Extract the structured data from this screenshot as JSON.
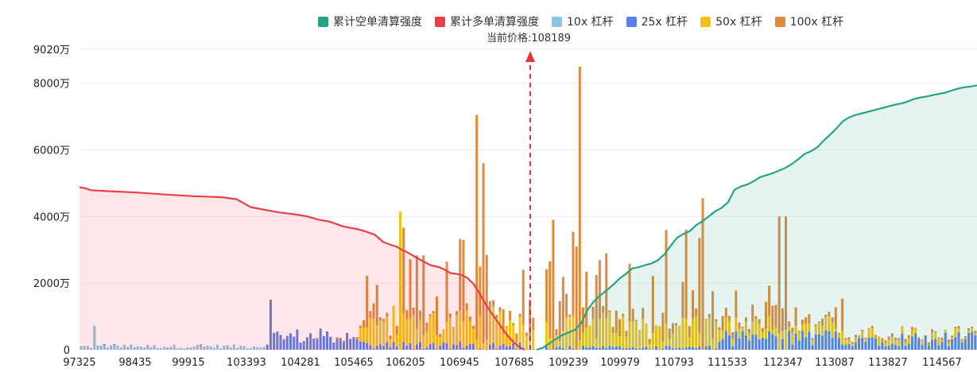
{
  "chart_data": {
    "type": "bar",
    "legend": [
      {
        "name": "累计空单清算强度",
        "color": "#26a483"
      },
      {
        "name": "累计多单清算强度",
        "color": "#ee3d48"
      },
      {
        "name": "10x 杠杆",
        "color": "#8ec3e6"
      },
      {
        "name": "25x 杠杆",
        "color": "#5b7ee8"
      },
      {
        "name": "50x 杠杆",
        "color": "#f6c211"
      },
      {
        "name": "100x 杠杆",
        "color": "#e08a3c"
      }
    ],
    "current_price_label": "当前价格:108189",
    "current_price": 108189,
    "y_ticks": [
      "0",
      "2000万",
      "4000万",
      "6000万",
      "8000万",
      "9020万"
    ],
    "y_tick_values": [
      0,
      2000,
      4000,
      6000,
      8000,
      9020
    ],
    "ylim": [
      0,
      9020
    ],
    "y_unit": "万",
    "x_ticks": [
      "97325",
      "98435",
      "99915",
      "103393",
      "104281",
      "105465",
      "106205",
      "106945",
      "107685",
      "109239",
      "109979",
      "110793",
      "111533",
      "112347",
      "113087",
      "113827",
      "114567"
    ],
    "bar_count": 270,
    "gap_index": 138,
    "leverage_bars_sample": {
      "note": "bar stacks: 10x, 25x, 50x, 100x (万)",
      "x_peak_bars": [
        {
          "x": "106945",
          "100x": 6750
        },
        {
          "x": "108189+",
          "100x": 8200
        },
        {
          "x": "106205",
          "50x": 4150
        },
        {
          "x": "110793",
          "100x": 4550
        }
      ]
    },
    "series_long_cumulative": [
      [
        0,
        4880
      ],
      [
        4,
        4850
      ],
      [
        8,
        4790
      ],
      [
        20,
        4760
      ],
      [
        40,
        4720
      ],
      [
        60,
        4660
      ],
      [
        80,
        4610
      ],
      [
        100,
        4580
      ],
      [
        110,
        4520
      ],
      [
        115,
        4400
      ],
      [
        120,
        4280
      ],
      [
        130,
        4200
      ],
      [
        140,
        4120
      ],
      [
        150,
        4070
      ],
      [
        160,
        4000
      ],
      [
        168,
        3900
      ],
      [
        175,
        3850
      ],
      [
        185,
        3700
      ],
      [
        195,
        3620
      ],
      [
        200,
        3560
      ],
      [
        207,
        3450
      ],
      [
        210,
        3340
      ],
      [
        213,
        3230
      ],
      [
        218,
        3150
      ],
      [
        222,
        3100
      ],
      [
        226,
        3000
      ],
      [
        230,
        2920
      ],
      [
        234,
        2820
      ],
      [
        238,
        2720
      ],
      [
        242,
        2630
      ],
      [
        246,
        2540
      ],
      [
        252,
        2480
      ],
      [
        256,
        2400
      ],
      [
        260,
        2300
      ],
      [
        264,
        2280
      ],
      [
        268,
        2240
      ],
      [
        272,
        2150
      ],
      [
        276,
        1980
      ],
      [
        280,
        1720
      ],
      [
        284,
        1420
      ],
      [
        288,
        1150
      ],
      [
        292,
        900
      ],
      [
        296,
        660
      ],
      [
        300,
        420
      ],
      [
        304,
        240
      ],
      [
        308,
        90
      ],
      [
        312,
        0
      ]
    ],
    "series_short_cumulative": [
      [
        0,
        0
      ],
      [
        4,
        60
      ],
      [
        8,
        190
      ],
      [
        12,
        320
      ],
      [
        16,
        440
      ],
      [
        20,
        520
      ],
      [
        24,
        600
      ],
      [
        28,
        800
      ],
      [
        32,
        1200
      ],
      [
        36,
        1460
      ],
      [
        40,
        1640
      ],
      [
        44,
        1790
      ],
      [
        48,
        1950
      ],
      [
        52,
        2140
      ],
      [
        56,
        2280
      ],
      [
        60,
        2440
      ],
      [
        64,
        2480
      ],
      [
        68,
        2540
      ],
      [
        72,
        2590
      ],
      [
        76,
        2690
      ],
      [
        80,
        2860
      ],
      [
        84,
        3120
      ],
      [
        88,
        3360
      ],
      [
        92,
        3480
      ],
      [
        96,
        3560
      ],
      [
        100,
        3740
      ],
      [
        104,
        3860
      ],
      [
        108,
        4010
      ],
      [
        112,
        4160
      ],
      [
        116,
        4260
      ],
      [
        120,
        4430
      ],
      [
        124,
        4800
      ],
      [
        128,
        4900
      ],
      [
        132,
        4960
      ],
      [
        136,
        5060
      ],
      [
        140,
        5180
      ],
      [
        144,
        5240
      ],
      [
        148,
        5300
      ],
      [
        152,
        5380
      ],
      [
        156,
        5460
      ],
      [
        160,
        5580
      ],
      [
        164,
        5720
      ],
      [
        168,
        5880
      ],
      [
        172,
        5960
      ],
      [
        176,
        6080
      ],
      [
        180,
        6280
      ],
      [
        184,
        6460
      ],
      [
        188,
        6650
      ],
      [
        192,
        6860
      ],
      [
        196,
        6980
      ],
      [
        200,
        7050
      ],
      [
        204,
        7100
      ],
      [
        208,
        7150
      ],
      [
        212,
        7200
      ],
      [
        216,
        7250
      ],
      [
        220,
        7300
      ],
      [
        224,
        7350
      ],
      [
        228,
        7390
      ],
      [
        232,
        7440
      ],
      [
        236,
        7520
      ],
      [
        240,
        7570
      ],
      [
        244,
        7600
      ],
      [
        248,
        7640
      ],
      [
        252,
        7680
      ],
      [
        256,
        7720
      ],
      [
        260,
        7780
      ],
      [
        264,
        7840
      ],
      [
        268,
        7880
      ],
      [
        272,
        7900
      ],
      [
        276,
        7940
      ]
    ]
  }
}
